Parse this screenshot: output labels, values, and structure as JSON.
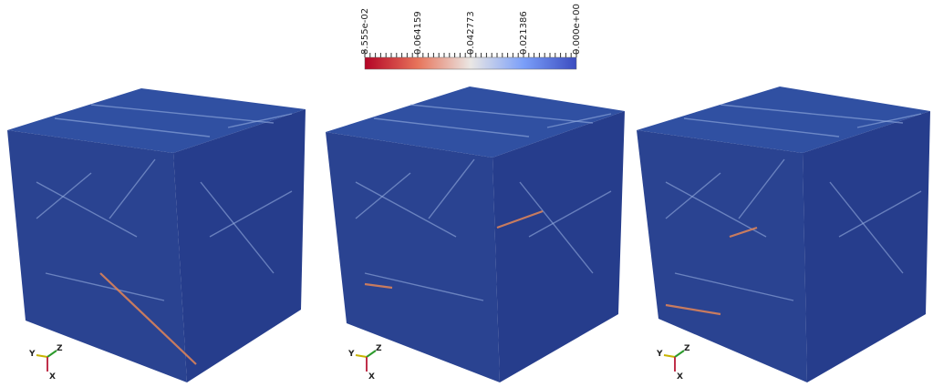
{
  "colorbar": {
    "labels": [
      "8.555e-02",
      "0.064159",
      "0.042773",
      "0.021386",
      "0.000e+00"
    ]
  },
  "axes_triad": {
    "x": "X",
    "y": "Y",
    "z": "Z"
  }
}
